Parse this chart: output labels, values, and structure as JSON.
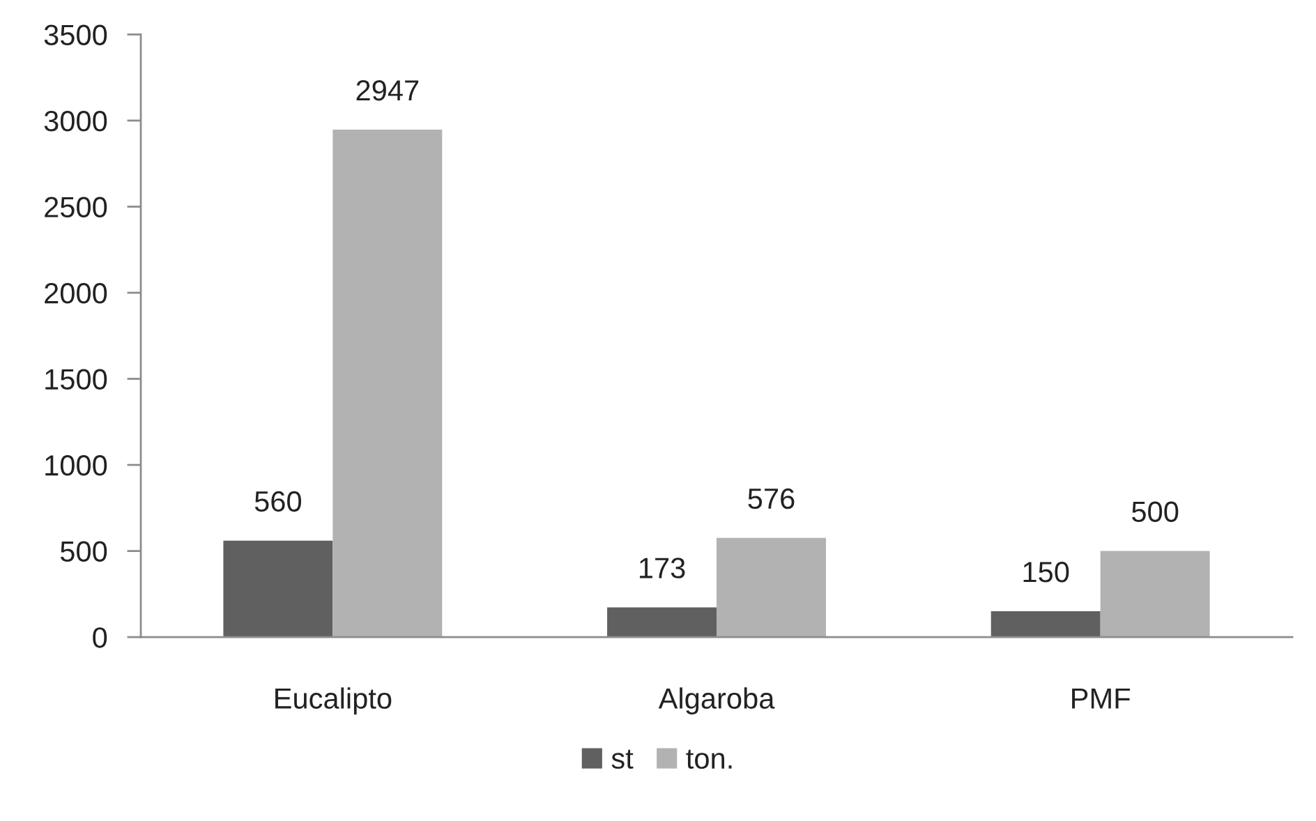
{
  "chart_data": {
    "type": "bar",
    "categories": [
      "Eucalipto",
      "Algaroba",
      "PMF"
    ],
    "series": [
      {
        "name": "st",
        "color": "#606060",
        "values": [
          560,
          173,
          150
        ]
      },
      {
        "name": "ton.",
        "color": "#b2b2b2",
        "values": [
          2947,
          576,
          500
        ]
      }
    ],
    "ylim": [
      0,
      3500
    ],
    "yticks": [
      0,
      500,
      1000,
      1500,
      2000,
      2500,
      3000,
      3500
    ],
    "grid": false,
    "legend": "bottom",
    "data_labels": true
  }
}
